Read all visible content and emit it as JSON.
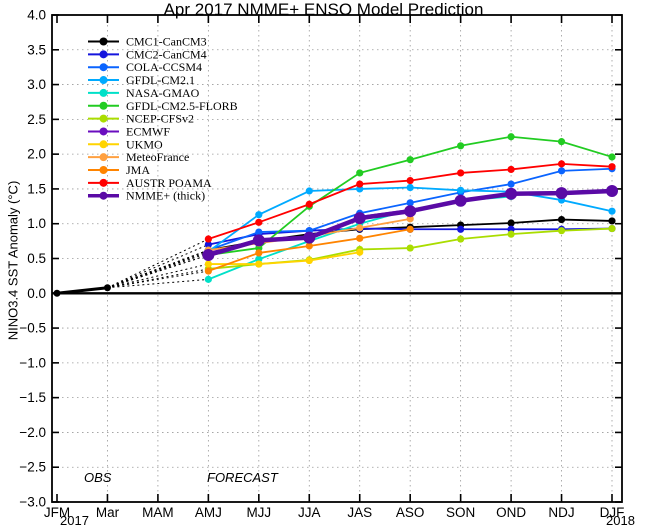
{
  "chart_data": {
    "type": "line",
    "title": "Apr 2017 NMME+ ENSO Model Prediction",
    "ylabel": "NINO3.4 SST Anomaly (°C)",
    "x_tick_labels": [
      "JFM",
      "Mar",
      "MAM",
      "AMJ",
      "MJJ",
      "JJA",
      "JAS",
      "ASO",
      "SON",
      "OND",
      "NDJ",
      "DJF"
    ],
    "year_left": "2017",
    "year_right": "2018",
    "ylim": [
      -3.0,
      4.0
    ],
    "ytick_step": 0.5,
    "grid": true,
    "legend_position": "top-left",
    "annotations": [
      {
        "text": "OBS"
      },
      {
        "text": "FORECAST"
      }
    ],
    "observed": {
      "name": "OBS",
      "color": "#000000",
      "x_indices": [
        0,
        1
      ],
      "values": [
        0.0,
        0.08
      ]
    },
    "forecast_start_index": 3,
    "series": [
      {
        "name": "CMC1-CanCM3",
        "color": "#000000",
        "values": [
          0.62,
          0.75,
          0.85,
          0.92,
          0.95,
          0.98,
          1.01,
          1.06,
          1.04
        ]
      },
      {
        "name": "CMC2-CanCM4",
        "color": "#1515dd",
        "values": [
          0.7,
          0.85,
          0.9,
          0.93,
          0.92,
          0.92,
          0.92,
          0.92,
          0.93
        ]
      },
      {
        "name": "COLA-CCSM4",
        "color": "#0a64ff",
        "values": [
          0.62,
          0.88,
          0.9,
          1.15,
          1.3,
          1.45,
          1.57,
          1.76,
          1.79
        ]
      },
      {
        "name": "GFDL-CM2.1",
        "color": "#00aaff",
        "values": [
          0.6,
          1.13,
          1.47,
          1.5,
          1.52,
          1.48,
          1.46,
          1.34,
          1.18
        ]
      },
      {
        "name": "NASA-GMAO",
        "color": "#00e0c8",
        "values": [
          0.2,
          0.49,
          0.75,
          1.0,
          1.2,
          1.33,
          1.39
        ]
      },
      {
        "name": "GFDL-CM2.5-FLORB",
        "color": "#22cc22",
        "values": [
          0.55,
          0.65,
          1.25,
          1.73,
          1.92,
          2.12,
          2.25,
          2.18,
          1.96
        ]
      },
      {
        "name": "NCEP-CFSv2",
        "color": "#aadd00",
        "values": [
          0.35,
          0.42,
          0.48,
          0.63,
          0.65,
          0.78,
          0.85,
          0.9,
          0.93
        ]
      },
      {
        "name": "ECMWF",
        "color": "#6a0dbf",
        "values": [
          0.58,
          0.77,
          0.8,
          1.1,
          1.2,
          1.32,
          1.42,
          1.45,
          1.47
        ]
      },
      {
        "name": "UKMO",
        "color": "#ffd400",
        "values": [
          0.42,
          0.42,
          0.47,
          0.59
        ]
      },
      {
        "name": "MeteoFrance",
        "color": "#ffa040",
        "values": [
          0.62,
          0.72,
          0.82,
          0.94,
          1.07
        ]
      },
      {
        "name": "JMA",
        "color": "#ff8400",
        "values": [
          0.32,
          0.58,
          0.68,
          0.79,
          0.92
        ]
      },
      {
        "name": "AUSTR POAMA",
        "color": "#ff0000",
        "values": [
          0.78,
          1.02,
          1.28,
          1.57,
          1.62,
          1.73,
          1.78,
          1.86,
          1.82
        ]
      },
      {
        "name": "NMME+ (thick)",
        "color": "#5a0aa5",
        "values": [
          0.55,
          0.76,
          0.8,
          1.08,
          1.18,
          1.33,
          1.43,
          1.44,
          1.47
        ],
        "thick": true
      }
    ]
  }
}
